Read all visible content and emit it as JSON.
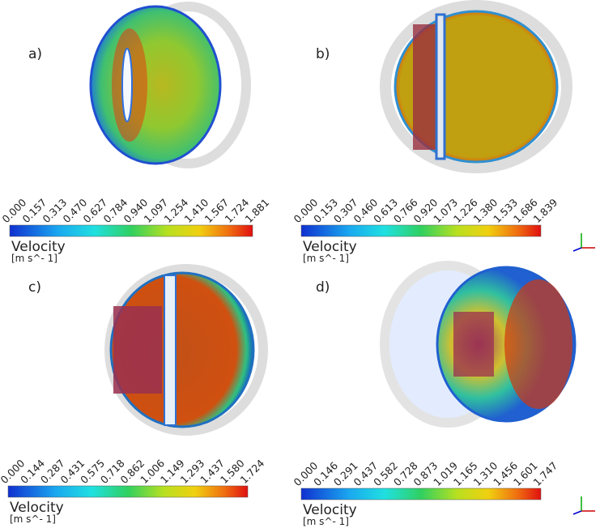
{
  "panels": [
    {
      "label": "a)",
      "colorbar": {
        "title": "Velocity",
        "unit": "[m  s^- 1]",
        "ticks": [
          "0.000",
          "0.157",
          "0.313",
          "0.470",
          "0.627",
          "0.784",
          "0.940",
          "1.097",
          "1.254",
          "1.410",
          "1.567",
          "1.724",
          "1.881"
        ]
      }
    },
    {
      "label": "b)",
      "colorbar": {
        "title": "Velocity",
        "unit": "[m  s^- 1]",
        "ticks": [
          "0.000",
          "0.153",
          "0.307",
          "0.460",
          "0.613",
          "0.766",
          "0.920",
          "1.073",
          "1.226",
          "1.380",
          "1.533",
          "1.686",
          "1.839"
        ]
      }
    },
    {
      "label": "c)",
      "colorbar": {
        "title": "Velocity",
        "unit": "[m  s^- 1]",
        "ticks": [
          "0.000",
          "0.144",
          "0.287",
          "0.431",
          "0.575",
          "0.718",
          "0.862",
          "1.006",
          "1.149",
          "1.293",
          "1.437",
          "1.580",
          "1.724"
        ]
      }
    },
    {
      "label": "d)",
      "colorbar": {
        "title": "Velocity",
        "unit": "[m  s^- 1]",
        "ticks": [
          "0.000",
          "0.146",
          "0.291",
          "0.437",
          "0.582",
          "0.728",
          "0.873",
          "1.019",
          "1.165",
          "1.310",
          "1.456",
          "1.601",
          "1.747"
        ]
      }
    }
  ]
}
